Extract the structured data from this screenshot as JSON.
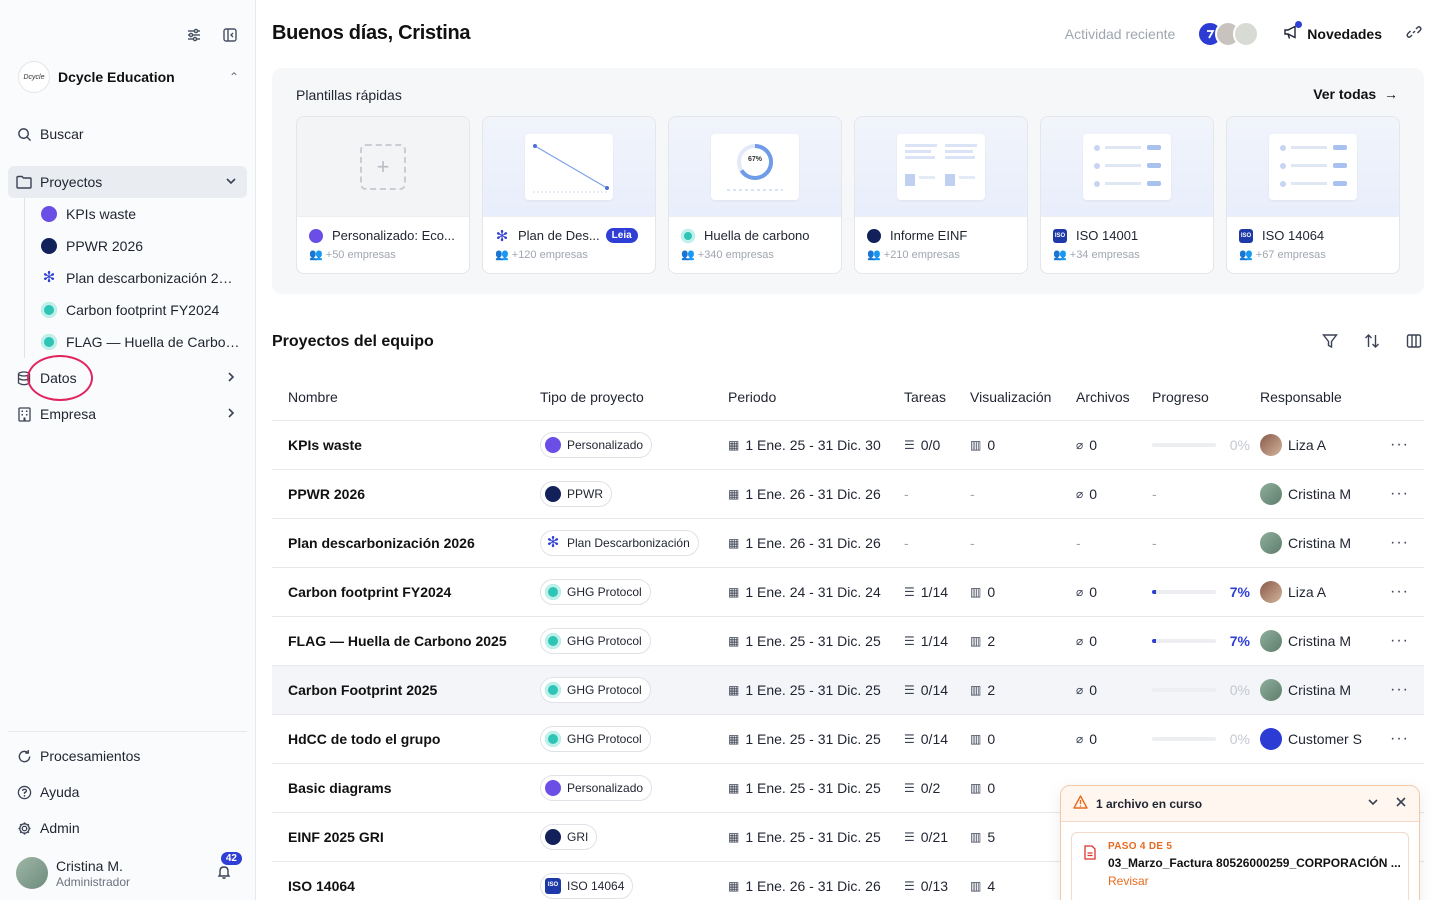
{
  "sidebar": {
    "workspace": {
      "logo": "Dcycle",
      "name": "Dcycle Education"
    },
    "search": "Buscar",
    "projects": "Proyectos",
    "project_items": [
      {
        "label": "KPIs waste",
        "icon": "personalizado-icon"
      },
      {
        "label": "PPWR 2026",
        "icon": "ppwr-icon"
      },
      {
        "label": "Plan descarbonización 2026",
        "icon": "plan-descarbonizacion-icon"
      },
      {
        "label": "Carbon footprint FY2024",
        "icon": "ghg-icon"
      },
      {
        "label": "FLAG — Huella de Carbono 2025",
        "icon": "ghg-icon"
      }
    ],
    "datos": "Datos",
    "empresa": "Empresa",
    "procesamientos": "Procesamientos",
    "ayuda": "Ayuda",
    "admin": "Admin",
    "user": {
      "name": "Cristina M.",
      "role": "Administrador",
      "notifications": "42"
    }
  },
  "header": {
    "greeting": "Buenos días, Cristina",
    "recent": "Actividad reciente",
    "novedades": "Novedades"
  },
  "templates": {
    "title": "Plantillas rápidas",
    "see_all": "Ver todas",
    "cards": [
      {
        "name": "Personalizado: Eco...",
        "sub": "+50 empresas",
        "badge": ""
      },
      {
        "name": "Plan de Des...",
        "sub": "+120 empresas",
        "badge": "Leia"
      },
      {
        "name": "Huella de carbono",
        "sub": "+340 empresas",
        "badge": "",
        "thumb_value": "67%"
      },
      {
        "name": "Informe EINF",
        "sub": "+210 empresas",
        "badge": ""
      },
      {
        "name": "ISO 14001",
        "sub": "+34 empresas",
        "badge": ""
      },
      {
        "name": "ISO 14064",
        "sub": "+67 empresas",
        "badge": ""
      }
    ]
  },
  "table": {
    "title": "Proyectos del equipo",
    "headers": {
      "name": "Nombre",
      "type": "Tipo de proyecto",
      "period": "Periodo",
      "tasks": "Tareas",
      "vis": "Visualización",
      "files": "Archivos",
      "progress": "Progreso",
      "owner": "Responsable"
    },
    "rows": [
      {
        "name": "KPIs waste",
        "type": "Personalizado",
        "period": "1 Ene. 25 - 31 Dic. 30",
        "tasks": "0/0",
        "vis": "0",
        "files": "0",
        "progress": "0%",
        "progress_value": 0,
        "owner": "Liza A"
      },
      {
        "name": "PPWR 2026",
        "type": "PPWR",
        "period": "1 Ene. 26 - 31 Dic. 26",
        "tasks": "-",
        "vis": "-",
        "files": "0",
        "progress": "-",
        "progress_value": null,
        "owner": "Cristina M"
      },
      {
        "name": "Plan descarbonización 2026",
        "type": "Plan Descarbonización",
        "period": "1 Ene. 26 - 31 Dic. 26",
        "tasks": "-",
        "vis": "-",
        "files": "-",
        "progress": "-",
        "progress_value": null,
        "owner": "Cristina M"
      },
      {
        "name": "Carbon footprint FY2024",
        "type": "GHG Protocol",
        "period": "1 Ene. 24 - 31 Dic. 24",
        "tasks": "1/14",
        "vis": "0",
        "files": "0",
        "progress": "7%",
        "progress_value": 7,
        "owner": "Liza A"
      },
      {
        "name": "FLAG — Huella de Carbono 2025",
        "type": "GHG Protocol",
        "period": "1 Ene. 25 - 31 Dic. 25",
        "tasks": "1/14",
        "vis": "2",
        "files": "0",
        "progress": "7%",
        "progress_value": 7,
        "owner": "Cristina M"
      },
      {
        "name": "Carbon Footprint 2025",
        "type": "GHG Protocol",
        "period": "1 Ene. 25 - 31 Dic. 25",
        "tasks": "0/14",
        "vis": "2",
        "files": "0",
        "progress": "0%",
        "progress_value": 0,
        "owner": "Cristina M"
      },
      {
        "name": "HdCC de todo el grupo",
        "type": "GHG Protocol",
        "period": "1 Ene. 25 - 31 Dic. 25",
        "tasks": "0/14",
        "vis": "0",
        "files": "0",
        "progress": "0%",
        "progress_value": 0,
        "owner": "Customer S"
      },
      {
        "name": "Basic diagrams",
        "type": "Personalizado",
        "period": "1 Ene. 25 - 31 Dic. 25",
        "tasks": "0/2",
        "vis": "0",
        "files": "",
        "progress": "",
        "progress_value": null,
        "owner": ""
      },
      {
        "name": "EINF 2025 GRI",
        "type": "GRI",
        "period": "1 Ene. 25 - 31 Dic. 25",
        "tasks": "0/21",
        "vis": "5",
        "files": "",
        "progress": "",
        "progress_value": null,
        "owner": ""
      },
      {
        "name": "ISO 14064",
        "type": "ISO 14064",
        "period": "1 Ene. 26 - 31 Dic. 26",
        "tasks": "0/13",
        "vis": "4",
        "files": "",
        "progress": "",
        "progress_value": null,
        "owner": ""
      }
    ]
  },
  "toast": {
    "title": "1 archivo en curso",
    "step": "PASO 4 DE 5",
    "file": "03_Marzo_Factura 80526000259_CORPORACIÓN ...",
    "action": "Revisar"
  },
  "colors": {
    "accent": "#2f3fd6",
    "warning": "#e86a1f",
    "highlight_ring": "#e0245e"
  }
}
